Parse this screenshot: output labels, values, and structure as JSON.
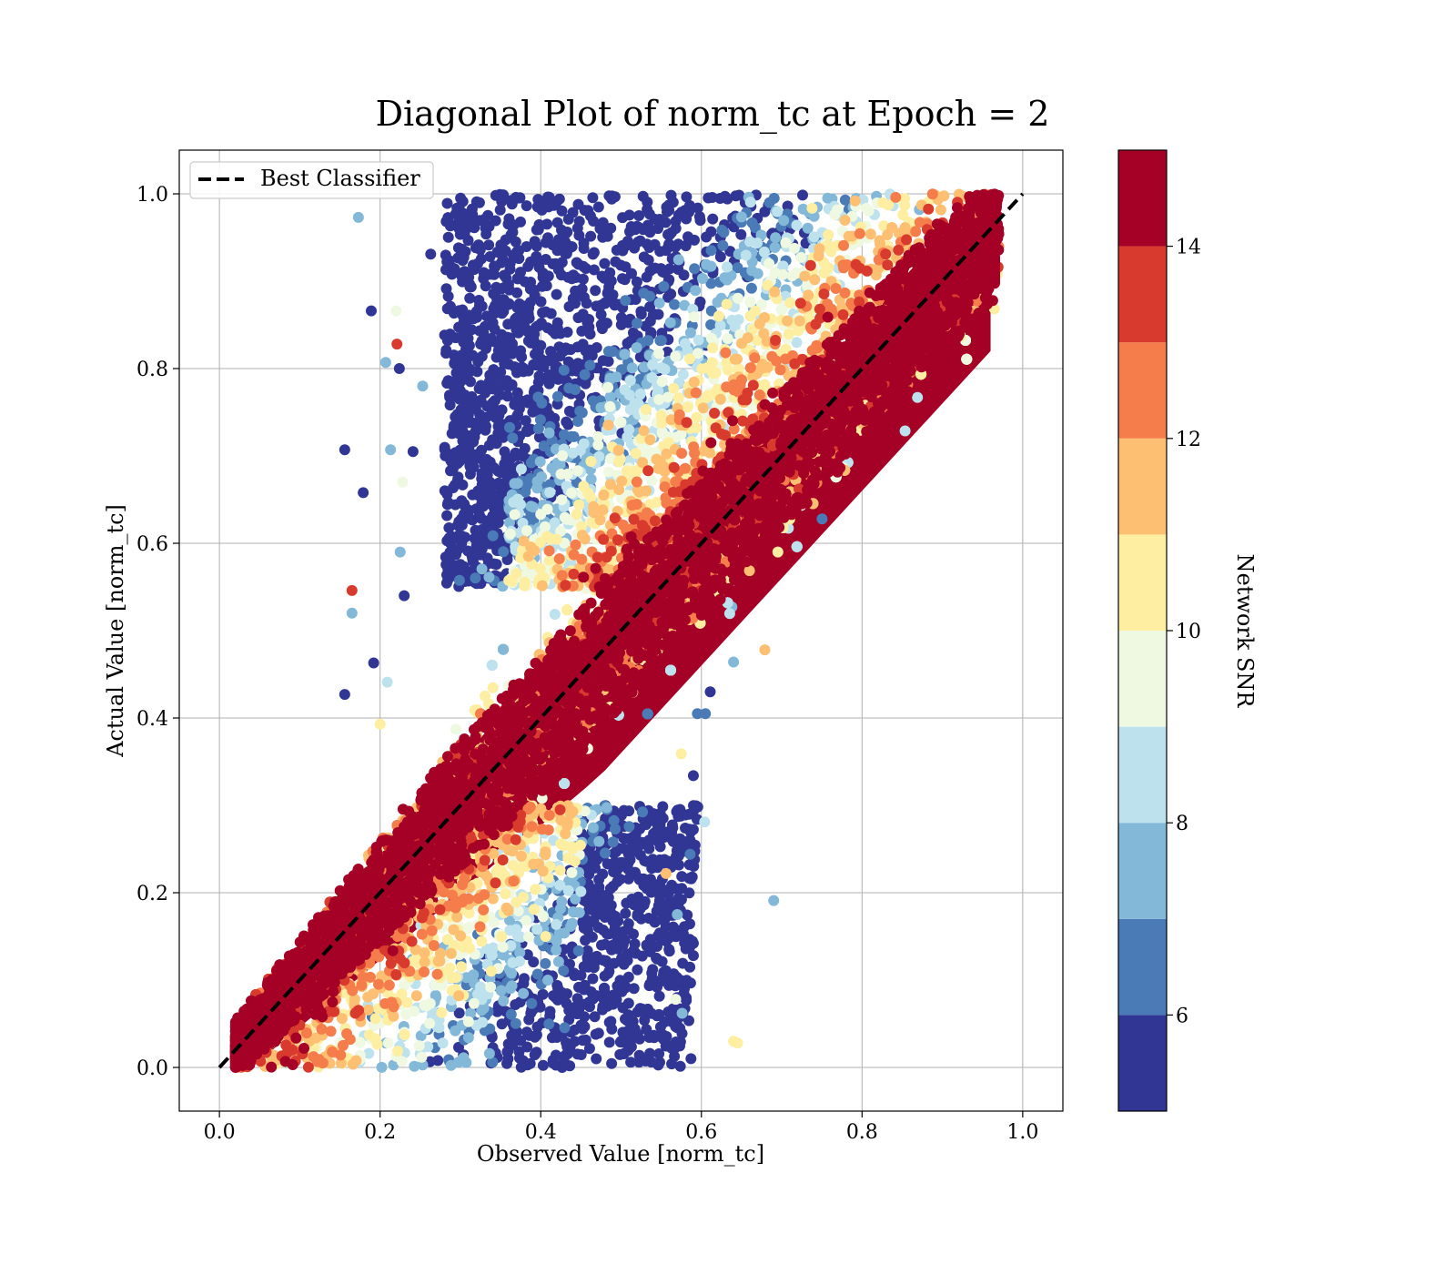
{
  "chart_data": {
    "type": "scatter",
    "title": "Diagonal Plot of norm_tc at Epoch = 2",
    "xlabel": "Observed Value [norm_tc]",
    "ylabel": "Actual Value [norm_tc]",
    "xlim": [
      -0.05,
      1.05
    ],
    "ylim": [
      -0.05,
      1.05
    ],
    "xticks": [
      "0.0",
      "0.2",
      "0.4",
      "0.6",
      "0.8",
      "1.0"
    ],
    "yticks": [
      "0.0",
      "0.2",
      "0.4",
      "0.6",
      "0.8",
      "1.0"
    ],
    "grid": true,
    "legend": {
      "position": "top-left",
      "entries": [
        {
          "label": "Best Classifier",
          "style": "dashed",
          "color": "#000000"
        }
      ]
    },
    "reference_line": {
      "x": [
        0,
        1
      ],
      "y": [
        0,
        1
      ],
      "style": "dashed",
      "color": "#000000"
    },
    "colorbar": {
      "label": "Network SNR",
      "range": [
        5,
        15
      ],
      "ticks": [
        "6",
        "8",
        "10",
        "12",
        "14"
      ],
      "levels": [
        {
          "from": 5,
          "to": 6,
          "color": "#313695"
        },
        {
          "from": 6,
          "to": 7,
          "color": "#4a7bb7"
        },
        {
          "from": 7,
          "to": 8,
          "color": "#83b8d8"
        },
        {
          "from": 8,
          "to": 9,
          "color": "#bde2ee"
        },
        {
          "from": 9,
          "to": 10,
          "color": "#eff8e1"
        },
        {
          "from": 10,
          "to": 11,
          "color": "#feeea2"
        },
        {
          "from": 11,
          "to": 12,
          "color": "#fdbf71"
        },
        {
          "from": 12,
          "to": 13,
          "color": "#f57d4c"
        },
        {
          "from": 13,
          "to": 14,
          "color": "#d93a2e"
        },
        {
          "from": 14,
          "to": 15,
          "color": "#a50026"
        }
      ]
    },
    "outlier_points": [
      [
        0.173,
        0.973,
        7.5
      ],
      [
        0.189,
        0.866,
        5.5
      ],
      [
        0.22,
        0.866,
        9.5
      ],
      [
        0.263,
        0.931,
        5.5
      ],
      [
        0.221,
        0.828,
        13.5
      ],
      [
        0.207,
        0.807,
        7.5
      ],
      [
        0.224,
        0.8,
        5.5
      ],
      [
        0.253,
        0.78,
        7.5
      ],
      [
        0.156,
        0.707,
        5.5
      ],
      [
        0.213,
        0.707,
        7.5
      ],
      [
        0.241,
        0.705,
        5.5
      ],
      [
        0.179,
        0.658,
        5.5
      ],
      [
        0.228,
        0.67,
        9.5
      ],
      [
        0.165,
        0.546,
        13.5
      ],
      [
        0.165,
        0.52,
        7.5
      ],
      [
        0.192,
        0.463,
        5.5
      ],
      [
        0.156,
        0.427,
        5.5
      ],
      [
        0.209,
        0.441,
        8.5
      ],
      [
        0.225,
        0.59,
        7.5
      ],
      [
        0.23,
        0.54,
        5.5
      ],
      [
        0.2,
        0.393,
        10.5
      ],
      [
        0.69,
        0.191,
        7.5
      ],
      [
        0.679,
        0.478,
        11.5
      ],
      [
        0.64,
        0.464,
        7.5
      ],
      [
        0.611,
        0.43,
        5.5
      ],
      [
        0.605,
        0.405,
        6.5
      ],
      [
        0.595,
        0.405,
        6.5
      ],
      [
        0.59,
        0.334,
        5.5
      ],
      [
        0.604,
        0.281,
        8.5
      ],
      [
        0.575,
        0.359,
        10.5
      ],
      [
        0.59,
        0.142,
        5.5
      ],
      [
        0.59,
        0.128,
        5.5
      ],
      [
        0.574,
        0.18,
        5.5
      ],
      [
        0.57,
        0.175,
        7.5
      ],
      [
        0.587,
        0.01,
        5.5
      ],
      [
        0.64,
        0.03,
        10.5
      ],
      [
        0.645,
        0.028,
        10.5
      ],
      [
        0.563,
        0.004,
        5.5
      ],
      [
        0.573,
        0.058,
        5.5
      ],
      [
        0.576,
        0.062,
        7.5
      ],
      [
        0.568,
        0.078,
        9.5
      ],
      [
        0.556,
        0.222,
        11.5
      ],
      [
        0.586,
        0.244,
        6.5
      ],
      [
        0.586,
        0.26,
        5.5
      ]
    ]
  }
}
